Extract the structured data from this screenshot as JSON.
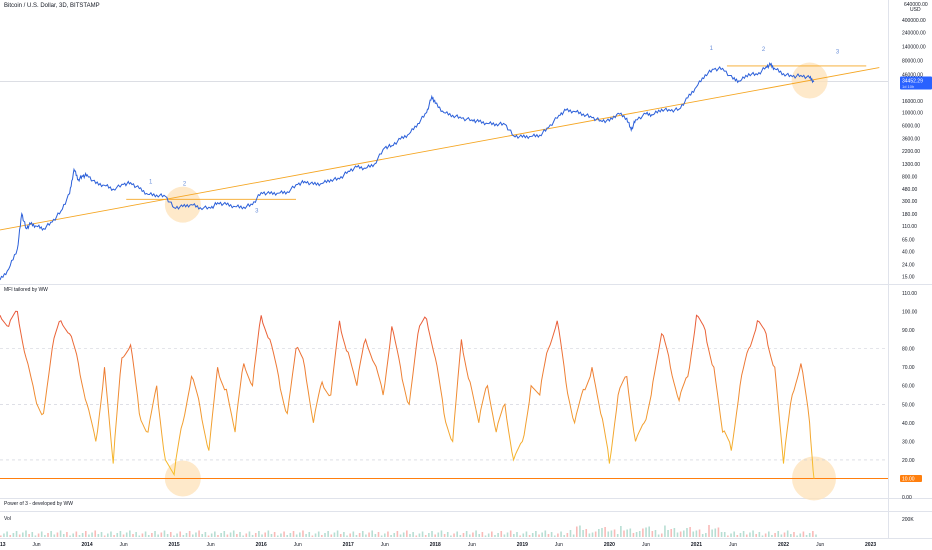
{
  "header": {
    "symbol_line": "Bitcoin / U.S. Dollar, 3D, BITSTAMP"
  },
  "price_axis": {
    "currency_top": "640000.00",
    "currency_unit": "USD",
    "ticks": [
      {
        "label": "400000.00",
        "value": 400000
      },
      {
        "label": "240000.00",
        "value": 240000
      },
      {
        "label": "140000.00",
        "value": 140000
      },
      {
        "label": "80000.00",
        "value": 80000
      },
      {
        "label": "46000.00",
        "value": 46000
      },
      {
        "label": "16000.00",
        "value": 16000
      },
      {
        "label": "10000.00",
        "value": 10000
      },
      {
        "label": "6000.00",
        "value": 6000
      },
      {
        "label": "3600.00",
        "value": 3600
      },
      {
        "label": "2200.00",
        "value": 2200
      },
      {
        "label": "1300.00",
        "value": 1300
      },
      {
        "label": "800.00",
        "value": 800
      },
      {
        "label": "480.00",
        "value": 480
      },
      {
        "label": "300.00",
        "value": 300
      },
      {
        "label": "180.00",
        "value": 180
      },
      {
        "label": "110.00",
        "value": 110
      },
      {
        "label": "65.00",
        "value": 65
      },
      {
        "label": "40.00",
        "value": 40
      },
      {
        "label": "24.00",
        "value": 24
      },
      {
        "label": "15.00",
        "value": 15
      }
    ],
    "last_price": "34452.29",
    "last_price_sub": "1d 10h",
    "accent": "#2962ff"
  },
  "time_axis": [
    {
      "label": "2013",
      "t": 2013.0
    },
    {
      "label": "Jun",
      "t": 2013.42
    },
    {
      "label": "2014",
      "t": 2014.0
    },
    {
      "label": "Jun",
      "t": 2014.42
    },
    {
      "label": "2015",
      "t": 2015.0
    },
    {
      "label": "Jun",
      "t": 2015.42
    },
    {
      "label": "2016",
      "t": 2016.0
    },
    {
      "label": "Jun",
      "t": 2016.42
    },
    {
      "label": "2017",
      "t": 2017.0
    },
    {
      "label": "Jun",
      "t": 2017.42
    },
    {
      "label": "2018",
      "t": 2018.0
    },
    {
      "label": "Jun",
      "t": 2018.42
    },
    {
      "label": "2019",
      "t": 2019.0
    },
    {
      "label": "Jun",
      "t": 2019.42
    },
    {
      "label": "2020",
      "t": 2020.0
    },
    {
      "label": "Jun",
      "t": 2020.42
    },
    {
      "label": "2021",
      "t": 2021.0
    },
    {
      "label": "Jun",
      "t": 2021.42
    },
    {
      "label": "2022",
      "t": 2022.0
    },
    {
      "label": "Jun",
      "t": 2022.42
    },
    {
      "label": "2023",
      "t": 2023.0
    }
  ],
  "annotations": [
    {
      "text": "1",
      "t": 2014.73,
      "price": 600
    },
    {
      "text": "2",
      "t": 2015.12,
      "price": 560
    },
    {
      "text": "3",
      "t": 2015.95,
      "price": 190
    },
    {
      "text": "1",
      "t": 2021.17,
      "price": 120000
    },
    {
      "text": "2",
      "t": 2021.77,
      "price": 115000
    },
    {
      "text": "3",
      "t": 2022.62,
      "price": 105000
    }
  ],
  "mfi_pane": {
    "title": "MFI tailored by WW",
    "ticks": [
      {
        "label": "110.00",
        "value": 110
      },
      {
        "label": "100.00",
        "value": 100
      },
      {
        "label": "90.00",
        "value": 90
      },
      {
        "label": "80.00",
        "value": 80
      },
      {
        "label": "70.00",
        "value": 70
      },
      {
        "label": "60.00",
        "value": 60
      },
      {
        "label": "50.00",
        "value": 50
      },
      {
        "label": "40.00",
        "value": 40
      },
      {
        "label": "30.00",
        "value": 30
      },
      {
        "label": "20.00",
        "value": 20
      },
      {
        "label": "10.00",
        "value": 10
      },
      {
        "label": "0.00",
        "value": 0
      }
    ],
    "current_value": "10.00",
    "accent": "#ff7f0e"
  },
  "power_pane": {
    "title": "Power of 3 - developed by WW"
  },
  "vol_pane": {
    "title": "Vol",
    "tick": "200K"
  },
  "colors": {
    "price_line": "#2b5fd9",
    "trend_line": "#f5a623",
    "mfi_high": "#e8553a",
    "mfi_low": "#f7c42b",
    "highlight": "#fde2b8"
  },
  "chart_data": [
    {
      "type": "line",
      "title": "Bitcoin / U.S. Dollar, 3D, BITSTAMP",
      "yscale": "log",
      "ylim": [
        12,
        640000
      ],
      "xlim": [
        2013.0,
        2023.2
      ],
      "series": [
        {
          "x": [
            2013.0,
            2013.1,
            2013.2,
            2013.25,
            2013.3,
            2013.35,
            2013.42,
            2013.5,
            2013.6,
            2013.7,
            2013.8,
            2013.85,
            2013.9,
            2013.95,
            2014.0,
            2014.1,
            2014.2,
            2014.3,
            2014.42,
            2014.5,
            2014.6,
            2014.7,
            2014.8,
            2014.9,
            2015.0,
            2015.1,
            2015.2,
            2015.3,
            2015.42,
            2015.5,
            2015.6,
            2015.7,
            2015.8,
            2015.9,
            2016.0,
            2016.1,
            2016.2,
            2016.3,
            2016.42,
            2016.5,
            2016.6,
            2016.7,
            2016.8,
            2016.9,
            2017.0,
            2017.1,
            2017.2,
            2017.3,
            2017.42,
            2017.5,
            2017.6,
            2017.7,
            2017.8,
            2017.9,
            2017.96,
            2018.0,
            2018.1,
            2018.2,
            2018.3,
            2018.42,
            2018.5,
            2018.6,
            2018.7,
            2018.8,
            2018.9,
            2019.0,
            2019.1,
            2019.2,
            2019.3,
            2019.42,
            2019.5,
            2019.6,
            2019.7,
            2019.8,
            2019.9,
            2020.0,
            2020.1,
            2020.2,
            2020.25,
            2020.3,
            2020.42,
            2020.5,
            2020.6,
            2020.7,
            2020.8,
            2020.9,
            2021.0,
            2021.1,
            2021.2,
            2021.3,
            2021.42,
            2021.5,
            2021.6,
            2021.7,
            2021.8,
            2021.85,
            2021.9,
            2022.0,
            2022.1,
            2022.2,
            2022.3,
            2022.35
          ],
          "y": [
            13,
            20,
            45,
            180,
            100,
            120,
            110,
            100,
            130,
            200,
            400,
            1050,
            700,
            800,
            850,
            600,
            560,
            480,
            580,
            620,
            490,
            390,
            380,
            360,
            230,
            240,
            260,
            230,
            225,
            280,
            260,
            240,
            235,
            260,
            420,
            400,
            410,
            430,
            580,
            650,
            580,
            600,
            700,
            720,
            980,
            1150,
            1100,
            1300,
            2500,
            2700,
            3500,
            4300,
            6500,
            10000,
            19000,
            14500,
            10000,
            9000,
            8000,
            7500,
            7000,
            6500,
            6400,
            6300,
            4000,
            3800,
            3900,
            4100,
            5500,
            9000,
            11000,
            10500,
            9500,
            8200,
            7300,
            7200,
            9800,
            8000,
            5000,
            7500,
            9500,
            9200,
            11500,
            10800,
            11500,
            18000,
            28000,
            45000,
            56000,
            58000,
            38000,
            35000,
            47000,
            45000,
            62000,
            67000,
            57000,
            47000,
            42000,
            44000,
            40000,
            34452
          ]
        }
      ]
    },
    {
      "type": "line",
      "title": "MFI tailored by WW",
      "ylim": [
        0,
        110
      ],
      "series": [
        {
          "x": [
            2013.0,
            2013.1,
            2013.2,
            2013.3,
            2013.4,
            2013.5,
            2013.6,
            2013.7,
            2013.8,
            2013.9,
            2014.0,
            2014.1,
            2014.2,
            2014.3,
            2014.4,
            2014.5,
            2014.6,
            2014.7,
            2014.8,
            2014.9,
            2015.0,
            2015.1,
            2015.2,
            2015.3,
            2015.4,
            2015.5,
            2015.6,
            2015.7,
            2015.8,
            2015.9,
            2016.0,
            2016.1,
            2016.2,
            2016.3,
            2016.4,
            2016.5,
            2016.6,
            2016.7,
            2016.8,
            2016.9,
            2017.0,
            2017.1,
            2017.2,
            2017.3,
            2017.4,
            2017.5,
            2017.6,
            2017.7,
            2017.8,
            2017.9,
            2018.0,
            2018.1,
            2018.2,
            2018.3,
            2018.4,
            2018.5,
            2018.6,
            2018.7,
            2018.8,
            2018.9,
            2019.0,
            2019.1,
            2019.2,
            2019.3,
            2019.4,
            2019.5,
            2019.6,
            2019.7,
            2019.8,
            2019.9,
            2020.0,
            2020.1,
            2020.2,
            2020.3,
            2020.4,
            2020.5,
            2020.6,
            2020.7,
            2020.8,
            2020.9,
            2021.0,
            2021.1,
            2021.2,
            2021.3,
            2021.4,
            2021.5,
            2021.6,
            2021.7,
            2021.8,
            2021.9,
            2022.0,
            2022.1,
            2022.2,
            2022.3,
            2022.35
          ],
          "y": [
            98,
            92,
            100,
            75,
            55,
            45,
            80,
            95,
            88,
            72,
            50,
            30,
            70,
            18,
            75,
            82,
            45,
            35,
            60,
            20,
            12,
            40,
            65,
            48,
            25,
            70,
            58,
            35,
            72,
            60,
            98,
            85,
            65,
            45,
            80,
            70,
            40,
            62,
            55,
            95,
            78,
            60,
            85,
            72,
            55,
            92,
            70,
            50,
            88,
            96,
            75,
            45,
            30,
            85,
            62,
            40,
            60,
            35,
            50,
            20,
            30,
            60,
            55,
            80,
            95,
            62,
            40,
            58,
            70,
            45,
            18,
            55,
            65,
            30,
            40,
            62,
            88,
            70,
            52,
            65,
            98,
            90,
            70,
            35,
            25,
            60,
            80,
            95,
            88,
            70,
            18,
            55,
            72,
            40,
            10
          ]
        }
      ]
    }
  ]
}
